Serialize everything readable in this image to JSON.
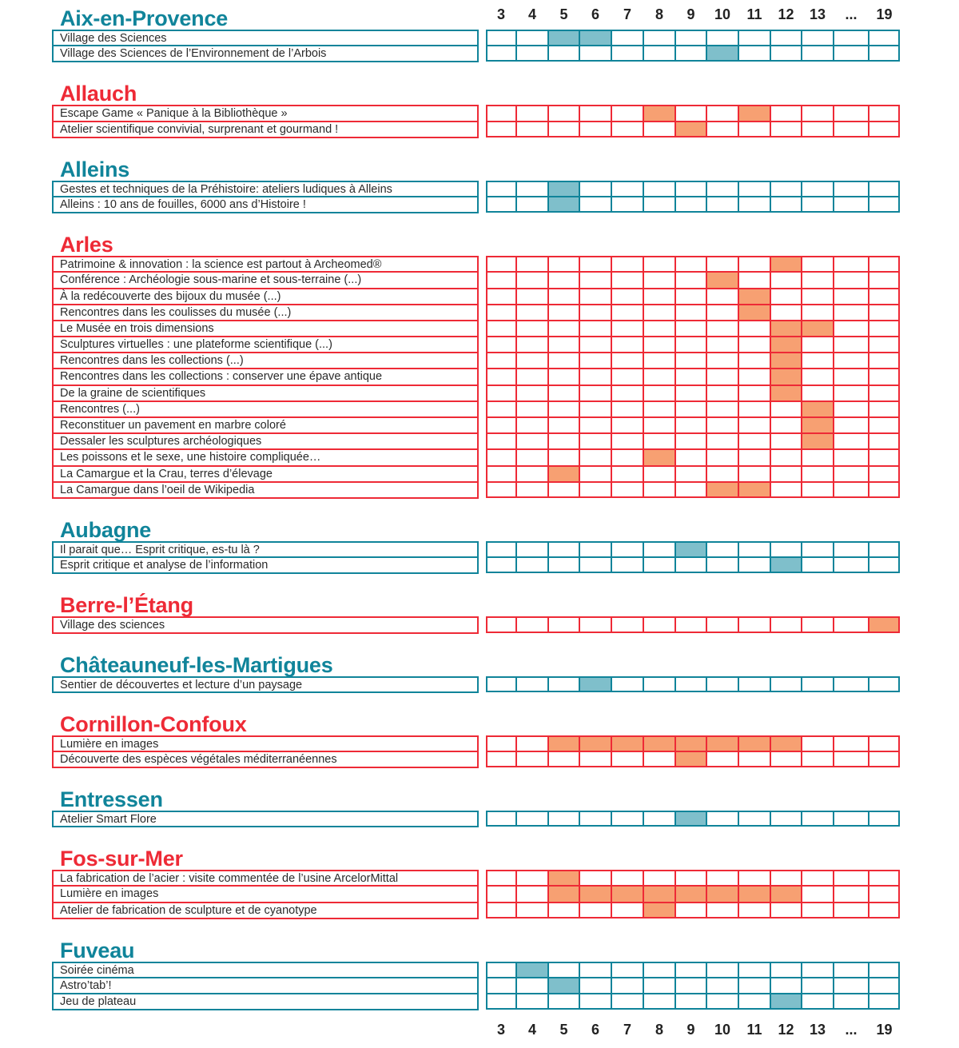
{
  "days": [
    "3",
    "4",
    "5",
    "6",
    "7",
    "8",
    "9",
    "10",
    "11",
    "12",
    "13",
    "...",
    "19"
  ],
  "colors": {
    "teal": "#10849a",
    "teal_fill": "#7fbfcb",
    "red": "#ee2a36",
    "red_fill": "#f7a072"
  },
  "sections": [
    {
      "city": "Aix-en-Provence",
      "theme": "teal",
      "events": [
        {
          "label": "Village des Sciences",
          "days": [
            "5",
            "6"
          ]
        },
        {
          "label": "Village des Sciences de l’Environnement de l’Arbois",
          "days": [
            "10"
          ]
        }
      ]
    },
    {
      "city": "Allauch",
      "theme": "red",
      "events": [
        {
          "label": "Escape Game « Panique à la Bibliothèque »",
          "days": [
            "8",
            "11"
          ]
        },
        {
          "label": "Atelier scientifique convivial, surprenant et gourmand !",
          "days": [
            "9"
          ]
        }
      ]
    },
    {
      "city": "Alleins",
      "theme": "teal",
      "events": [
        {
          "label": "Gestes et techniques de la Préhistoire: ateliers ludiques à Alleins",
          "days": [
            "5"
          ]
        },
        {
          "label": "Alleins : 10 ans de fouilles, 6000 ans d’Histoire !",
          "days": [
            "5"
          ]
        }
      ]
    },
    {
      "city": "Arles",
      "theme": "red",
      "events": [
        {
          "label": "Patrimoine & innovation : la science est partout à Archeomed®",
          "days": [
            "12"
          ]
        },
        {
          "label": "Conférence : Archéologie sous-marine et sous-terraine (...)",
          "days": [
            "10"
          ]
        },
        {
          "label": "À la redécouverte des bijoux du musée (...)",
          "days": [
            "11"
          ]
        },
        {
          "label": "Rencontres dans les coulisses du musée (...)",
          "days": [
            "11"
          ]
        },
        {
          "label": "Le Musée en trois dimensions",
          "days": [
            "12",
            "13"
          ]
        },
        {
          "label": "Sculptures virtuelles : une plateforme scientifique (...)",
          "days": [
            "12"
          ]
        },
        {
          "label": "Rencontres dans les collections (...)",
          "days": [
            "12"
          ]
        },
        {
          "label": "Rencontres dans les collections : conserver une épave antique",
          "days": [
            "12"
          ]
        },
        {
          "label": "De la graine de scientifiques",
          "days": [
            "12"
          ]
        },
        {
          "label": "Rencontres (...)",
          "days": [
            "13"
          ]
        },
        {
          "label": "Reconstituer un pavement en marbre coloré",
          "days": [
            "13"
          ]
        },
        {
          "label": "Dessaler les sculptures archéologiques",
          "days": [
            "13"
          ]
        },
        {
          "label": "Les poissons et le sexe, une histoire compliquée…",
          "days": [
            "8"
          ]
        },
        {
          "label": "La Camargue et la Crau, terres d’élevage",
          "days": [
            "5"
          ]
        },
        {
          "label": "La Camargue dans l’oeil de Wikipedia",
          "days": [
            "10",
            "11"
          ]
        }
      ]
    },
    {
      "city": "Aubagne",
      "theme": "teal",
      "events": [
        {
          "label": "Il parait que… Esprit critique, es-tu là ?",
          "days": [
            "9"
          ]
        },
        {
          "label": "Esprit critique et analyse de l’information",
          "days": [
            "12"
          ]
        }
      ]
    },
    {
      "city": "Berre-l’Étang",
      "theme": "red",
      "events": [
        {
          "label": "Village des sciences",
          "days": [
            "19"
          ]
        }
      ]
    },
    {
      "city": "Châteauneuf-les-Martigues",
      "theme": "teal",
      "events": [
        {
          "label": "Sentier de découvertes et lecture d’un paysage",
          "days": [
            "6"
          ]
        }
      ]
    },
    {
      "city": "Cornillon-Confoux",
      "theme": "red",
      "events": [
        {
          "label": "Lumière en images",
          "days": [
            "5",
            "6",
            "7",
            "8",
            "9",
            "10",
            "11",
            "12"
          ]
        },
        {
          "label": "Découverte des espèces végétales méditerranéennes",
          "days": [
            "9"
          ]
        }
      ]
    },
    {
      "city": "Entressen",
      "theme": "teal",
      "events": [
        {
          "label": "Atelier Smart Flore",
          "days": [
            "9"
          ]
        }
      ]
    },
    {
      "city": "Fos-sur-Mer",
      "theme": "red",
      "events": [
        {
          "label": "La fabrication de l’acier : visite commentée de l’usine ArcelorMittal",
          "days": [
            "5"
          ]
        },
        {
          "label": "Lumière en images",
          "days": [
            "5",
            "6",
            "7",
            "8",
            "9",
            "10",
            "11",
            "12"
          ]
        },
        {
          "label": "Atelier de fabrication de sculpture et de cyanotype",
          "days": [
            "8"
          ]
        }
      ]
    },
    {
      "city": "Fuveau",
      "theme": "teal",
      "events": [
        {
          "label": "Soirée cinéma",
          "days": [
            "4"
          ]
        },
        {
          "label": "Astro’tab’!",
          "days": [
            "5"
          ]
        },
        {
          "label": "Jeu de plateau",
          "days": [
            "12"
          ]
        }
      ]
    }
  ]
}
